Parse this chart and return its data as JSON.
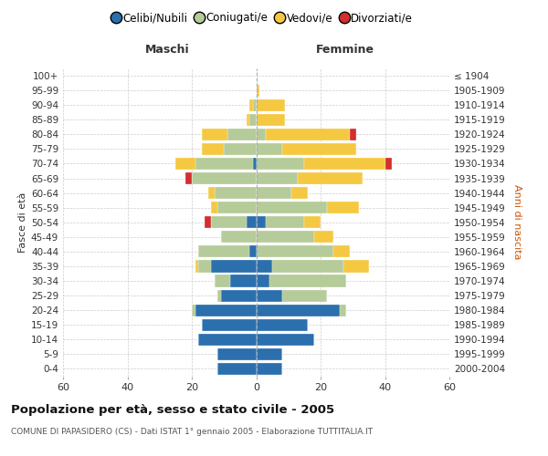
{
  "age_groups": [
    "100+",
    "95-99",
    "90-94",
    "85-89",
    "80-84",
    "75-79",
    "70-74",
    "65-69",
    "60-64",
    "55-59",
    "50-54",
    "45-49",
    "40-44",
    "35-39",
    "30-34",
    "25-29",
    "20-24",
    "15-19",
    "10-14",
    "5-9",
    "0-4"
  ],
  "birth_years": [
    "≤ 1904",
    "1905-1909",
    "1910-1914",
    "1915-1919",
    "1920-1924",
    "1925-1929",
    "1930-1934",
    "1935-1939",
    "1940-1944",
    "1945-1949",
    "1950-1954",
    "1955-1959",
    "1960-1964",
    "1965-1969",
    "1970-1974",
    "1975-1979",
    "1980-1984",
    "1985-1989",
    "1990-1994",
    "1995-1999",
    "2000-2004"
  ],
  "male": {
    "celibi": [
      0,
      0,
      0,
      0,
      0,
      0,
      1,
      0,
      0,
      0,
      3,
      0,
      2,
      14,
      8,
      11,
      19,
      17,
      18,
      12,
      12
    ],
    "coniugati": [
      0,
      0,
      1,
      2,
      9,
      10,
      18,
      20,
      13,
      12,
      11,
      11,
      16,
      4,
      5,
      1,
      1,
      0,
      0,
      0,
      0
    ],
    "vedovi": [
      0,
      0,
      1,
      1,
      8,
      7,
      6,
      0,
      2,
      2,
      0,
      0,
      0,
      1,
      0,
      0,
      0,
      0,
      0,
      0,
      0
    ],
    "divorziati": [
      0,
      0,
      0,
      0,
      0,
      0,
      0,
      2,
      0,
      0,
      2,
      0,
      0,
      0,
      0,
      0,
      0,
      0,
      0,
      0,
      0
    ]
  },
  "female": {
    "nubili": [
      0,
      0,
      0,
      0,
      0,
      0,
      0,
      0,
      0,
      0,
      3,
      0,
      0,
      5,
      4,
      8,
      26,
      16,
      18,
      8,
      8
    ],
    "coniugate": [
      0,
      0,
      0,
      0,
      3,
      8,
      15,
      13,
      11,
      22,
      12,
      18,
      24,
      22,
      24,
      14,
      2,
      0,
      0,
      0,
      0
    ],
    "vedove": [
      0,
      1,
      9,
      9,
      26,
      23,
      25,
      20,
      5,
      10,
      5,
      6,
      5,
      8,
      0,
      0,
      0,
      0,
      0,
      0,
      0
    ],
    "divorziate": [
      0,
      0,
      0,
      0,
      2,
      0,
      2,
      0,
      0,
      0,
      0,
      0,
      0,
      0,
      0,
      0,
      0,
      0,
      0,
      0,
      0
    ]
  },
  "colors": {
    "celibi_nubili": "#2c6fad",
    "coniugati": "#b5cb99",
    "vedovi": "#f5c842",
    "divorziati": "#d32f2f"
  },
  "xlim": 60,
  "title": "Popolazione per età, sesso e stato civile - 2005",
  "subtitle": "COMUNE DI PAPASIDERO (CS) - Dati ISTAT 1° gennaio 2005 - Elaborazione TUTTITALIA.IT",
  "ylabel_left": "Fasce di età",
  "ylabel_right": "Anni di nascita",
  "xlabel_left": "Maschi",
  "xlabel_right": "Femmine"
}
